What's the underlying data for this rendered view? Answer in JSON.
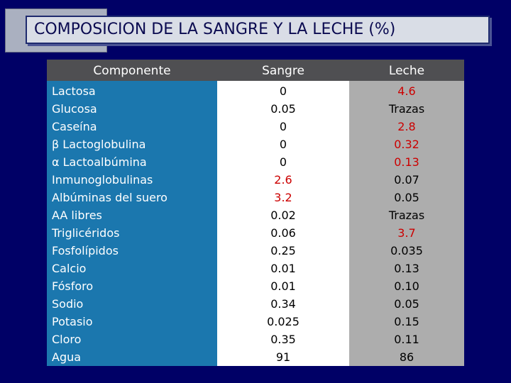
{
  "title": "COMPOSICION DE LA SANGRE Y LA LECHE (%)",
  "headers": {
    "component": "Componente",
    "blood": "Sangre",
    "milk": "Leche"
  },
  "rows": [
    {
      "name": "Lactosa",
      "blood": "0",
      "milk": "4.6",
      "blood_red": false,
      "milk_red": true
    },
    {
      "name": "Glucosa",
      "blood": "0.05",
      "milk": "Trazas",
      "blood_red": false,
      "milk_red": false
    },
    {
      "name": "Caseína",
      "blood": "0",
      "milk": "2.8",
      "blood_red": false,
      "milk_red": true
    },
    {
      "name": "β Lactoglobulina",
      "blood": "0",
      "milk": "0.32",
      "blood_red": false,
      "milk_red": true
    },
    {
      "name": "α Lactoalbúmina",
      "blood": "0",
      "milk": "0.13",
      "blood_red": false,
      "milk_red": true
    },
    {
      "name": "Inmunoglobulinas",
      "blood": "2.6",
      "milk": "0.07",
      "blood_red": true,
      "milk_red": false
    },
    {
      "name": "Albúminas del suero",
      "blood": "3.2",
      "milk": "0.05",
      "blood_red": true,
      "milk_red": false
    },
    {
      "name": "AA libres",
      "blood": "0.02",
      "milk": "Trazas",
      "blood_red": false,
      "milk_red": false
    },
    {
      "name": "Triglicéridos",
      "blood": "0.06",
      "milk": "3.7",
      "blood_red": false,
      "milk_red": true
    },
    {
      "name": "Fosfolípidos",
      "blood": "0.25",
      "milk": "0.035",
      "blood_red": false,
      "milk_red": false
    },
    {
      "name": "Calcio",
      "blood": "0.01",
      "milk": "0.13",
      "blood_red": false,
      "milk_red": false
    },
    {
      "name": "Fósforo",
      "blood": "0.01",
      "milk": "0.10",
      "blood_red": false,
      "milk_red": false
    },
    {
      "name": "Sodio",
      "blood": "0.34",
      "milk": "0.05",
      "blood_red": false,
      "milk_red": false
    },
    {
      "name": "Potasio",
      "blood": "0.025",
      "milk": "0.15",
      "blood_red": false,
      "milk_red": false
    },
    {
      "name": "Cloro",
      "blood": "0.35",
      "milk": "0.11",
      "blood_red": false,
      "milk_red": false
    },
    {
      "name": "Agua",
      "blood": "91",
      "milk": "86",
      "blood_red": false,
      "milk_red": false
    }
  ],
  "colors": {
    "background": "#000066",
    "component_column": "#1b77ae",
    "blood_column": "#ffffff",
    "milk_column": "#adadad",
    "header": "#4f4f52",
    "highlight": "#cc0000"
  }
}
